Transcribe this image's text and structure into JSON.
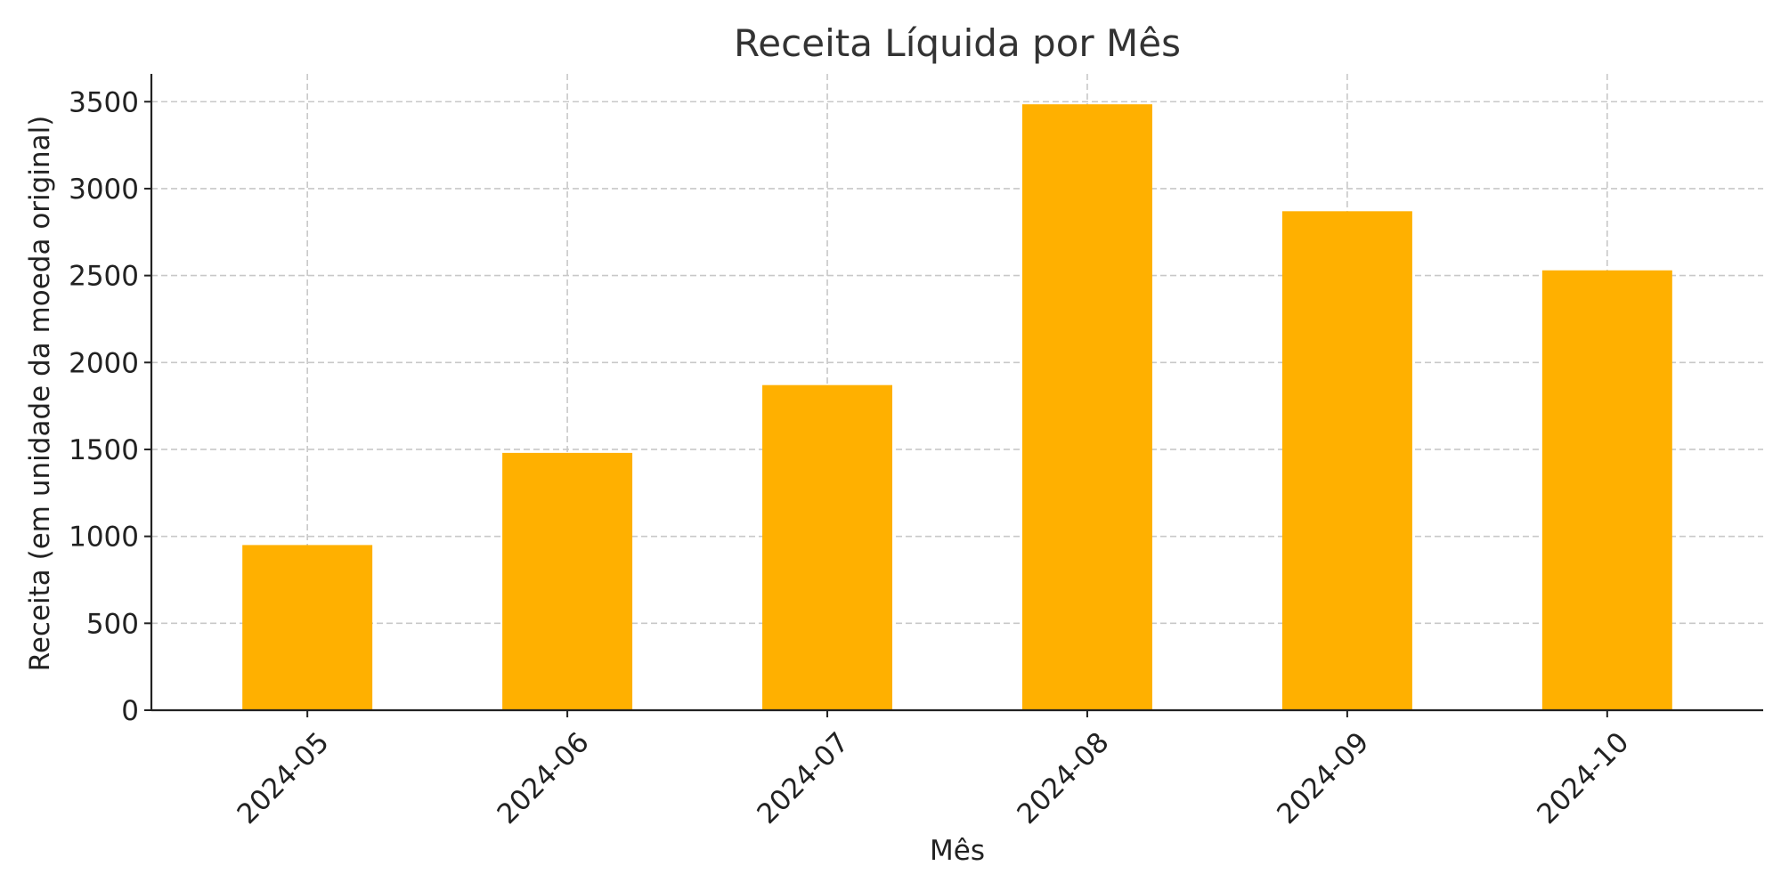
{
  "chart_data": {
    "type": "bar",
    "title": "Receita Líquida por Mês",
    "xlabel": "Mês",
    "ylabel": "Receita (em unidade da moeda original)",
    "categories": [
      "2024-05",
      "2024-06",
      "2024-07",
      "2024-08",
      "2024-09",
      "2024-10"
    ],
    "values": [
      950,
      1480,
      1870,
      3485,
      2870,
      2530
    ],
    "ylim": [
      0,
      3660
    ],
    "yticks": [
      0,
      500,
      1000,
      1500,
      2000,
      2500,
      3000,
      3500
    ],
    "xtick_rotation": 45,
    "grid": true,
    "grid_style": "dashed",
    "bar_color": "#FFB000"
  }
}
